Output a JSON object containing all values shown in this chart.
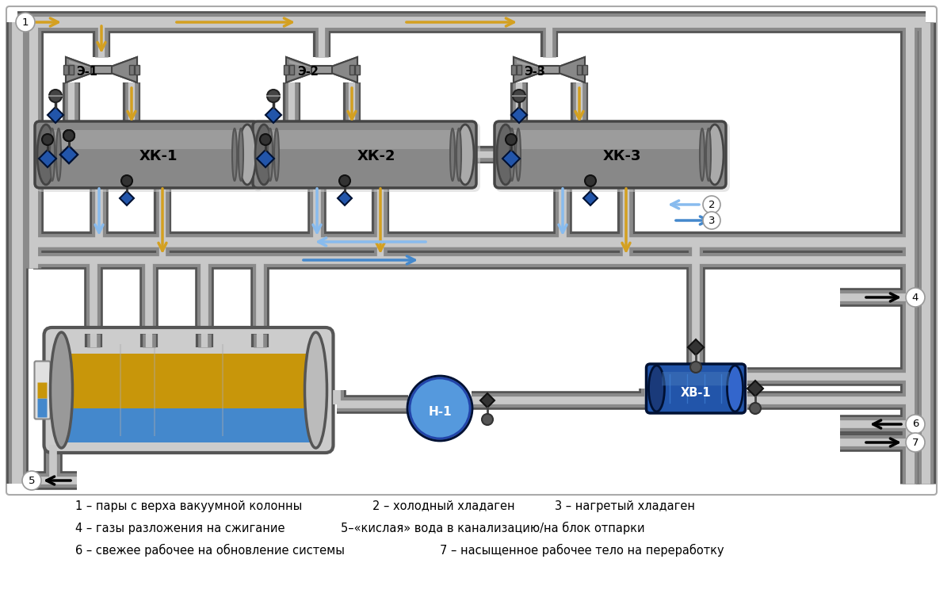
{
  "bg": "#ffffff",
  "pipe_gray": "#8a8a8a",
  "pipe_dark": "#555555",
  "pipe_highlight": "#c8c8c8",
  "gold": "#D4A020",
  "blue_dark": "#2255AA",
  "blue_mid": "#4488CC",
  "blue_light": "#88BBEE",
  "vessel_gold": "#C8960A",
  "vessel_blue": "#4488CC",
  "hv_blue": "#2255AA",
  "legend_line1": "1 – пары с верха вакуумной колонны",
  "legend_2": "2 – холодный хладаген",
  "legend_3": "3 – нагретый хладаген",
  "legend_4": "4 – газы разложения на сжигание",
  "legend_5": "5–«кислая» вода в канализацию/на блок отпарки",
  "legend_6": "6 – свежее рабочее на обновление системы",
  "legend_7": "7 – насыщенное рабочее тело на переработку"
}
